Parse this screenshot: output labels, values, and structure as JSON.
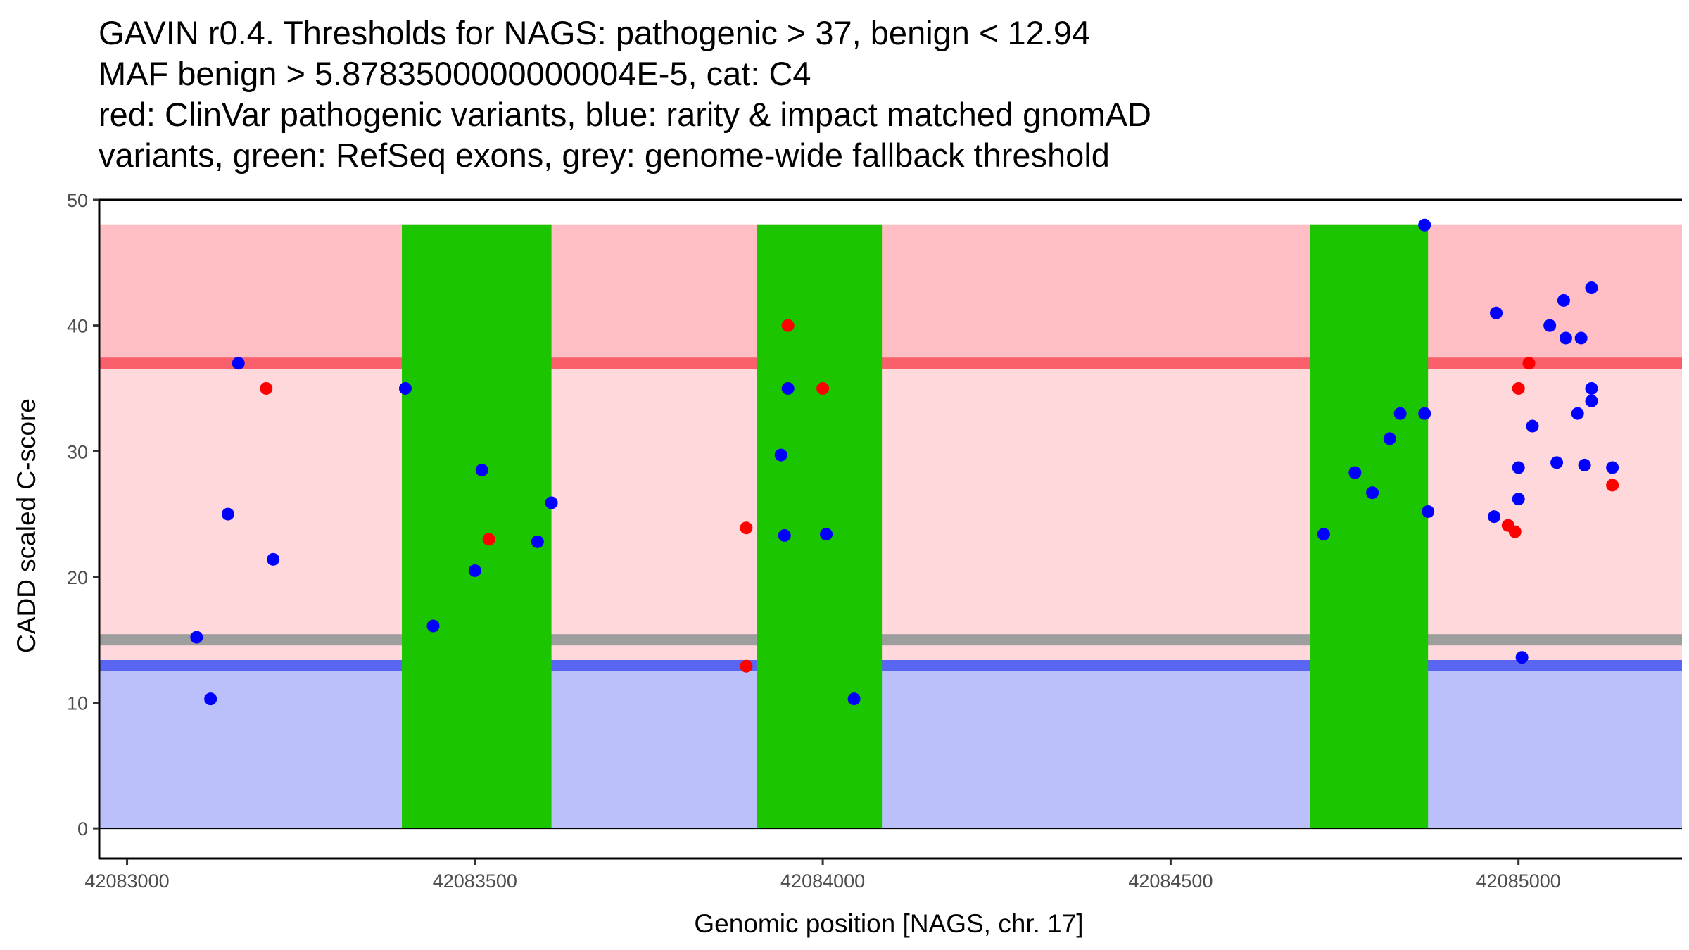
{
  "title_lines": [
    "GAVIN r0.4. Thresholds for NAGS: pathogenic > 37, benign < 12.94",
    "MAF benign > 5.8783500000000004E-5, cat: C4",
    "red: ClinVar pathogenic variants, blue: rarity & impact matched gnomAD",
    "variants, green: RefSeq exons, grey: genome-wide fallback threshold"
  ],
  "chart_data": {
    "type": "scatter",
    "title": "GAVIN r0.4. Thresholds for NAGS: pathogenic > 37, benign < 12.94 MAF benign > 5.8783500000000004E-5, cat: C4 red: ClinVar pathogenic variants, blue: rarity & impact matched gnomAD variants, green: RefSeq exons, grey: genome-wide fallback threshold",
    "xlabel": "Genomic position [NAGS, chr. 17]",
    "ylabel": "CADD scaled C-score",
    "xlim": [
      42082960,
      42085235
    ],
    "ylim": [
      -2.4,
      50
    ],
    "x_ticks": [
      42083000,
      42083500,
      42084000,
      42084500,
      42085000
    ],
    "x_tick_labels": [
      "42083000",
      "42083500",
      "42084000",
      "42084500",
      "42085000"
    ],
    "y_ticks": [
      0,
      10,
      20,
      30,
      40,
      50
    ],
    "y_tick_labels": [
      "0",
      "10",
      "20",
      "30",
      "40",
      "50"
    ],
    "x_range": [
      42082960,
      42085235
    ],
    "regions": [
      {
        "name": "pathogenic-region",
        "y0": 37,
        "y1": 48,
        "color": "#ffbec3"
      },
      {
        "name": "intermediate-region",
        "y0": 12.94,
        "y1": 37,
        "color": "#ffd8dc"
      },
      {
        "name": "benign-region",
        "y0": 0,
        "y1": 12.94,
        "color": "#bbc0fb"
      }
    ],
    "threshold_lines": [
      {
        "name": "pathogenic-threshold",
        "y": 37,
        "color": "#f9606c"
      },
      {
        "name": "fallback-threshold",
        "y": 15,
        "color": "#9e9e9e"
      },
      {
        "name": "benign-threshold",
        "y": 12.94,
        "color": "#5866f1"
      }
    ],
    "exons": [
      {
        "start": 42083395,
        "end": 42083610
      },
      {
        "start": 42083905,
        "end": 42084085
      },
      {
        "start": 42084700,
        "end": 42084870
      }
    ],
    "exon_color": "#1bc500",
    "exon_ymax": 48,
    "series": [
      {
        "name": "gnomAD variants",
        "color": "#0000ff",
        "points": [
          [
            42083100,
            15.2
          ],
          [
            42083120,
            10.3
          ],
          [
            42083145,
            25.0
          ],
          [
            42083160,
            37.0
          ],
          [
            42083210,
            21.4
          ],
          [
            42083400,
            35.0
          ],
          [
            42083440,
            16.1
          ],
          [
            42083500,
            20.5
          ],
          [
            42083510,
            28.5
          ],
          [
            42083590,
            22.8
          ],
          [
            42083610,
            25.9
          ],
          [
            42083940,
            29.7
          ],
          [
            42083945,
            23.3
          ],
          [
            42083950,
            35.0
          ],
          [
            42084005,
            23.4
          ],
          [
            42084045,
            10.3
          ],
          [
            42084720,
            23.4
          ],
          [
            42084765,
            28.3
          ],
          [
            42084790,
            26.7
          ],
          [
            42084815,
            31.0
          ],
          [
            42084830,
            33.0
          ],
          [
            42084865,
            48.0
          ],
          [
            42084865,
            33.0
          ],
          [
            42084870,
            25.2
          ],
          [
            42084965,
            24.8
          ],
          [
            42084968,
            41.0
          ],
          [
            42085000,
            28.7
          ],
          [
            42085000,
            26.2
          ],
          [
            42085005,
            13.6
          ],
          [
            42085020,
            32.0
          ],
          [
            42085045,
            40.0
          ],
          [
            42085055,
            29.1
          ],
          [
            42085065,
            42.0
          ],
          [
            42085068,
            39.0
          ],
          [
            42085085,
            33.0
          ],
          [
            42085090,
            39.0
          ],
          [
            42085095,
            28.9
          ],
          [
            42085105,
            43.0
          ],
          [
            42085105,
            35.0
          ],
          [
            42085105,
            34.0
          ],
          [
            42085135,
            28.7
          ]
        ]
      },
      {
        "name": "ClinVar pathogenic variants",
        "color": "#ff0000",
        "points": [
          [
            42083200,
            35.0
          ],
          [
            42083520,
            23.0
          ],
          [
            42083890,
            12.9
          ],
          [
            42083890,
            23.9
          ],
          [
            42083950,
            40.0
          ],
          [
            42084000,
            35.0
          ],
          [
            42084985,
            24.1
          ],
          [
            42084995,
            23.6
          ],
          [
            42085000,
            35.0
          ],
          [
            42085015,
            37.0
          ],
          [
            42085135,
            27.3
          ]
        ]
      }
    ]
  }
}
